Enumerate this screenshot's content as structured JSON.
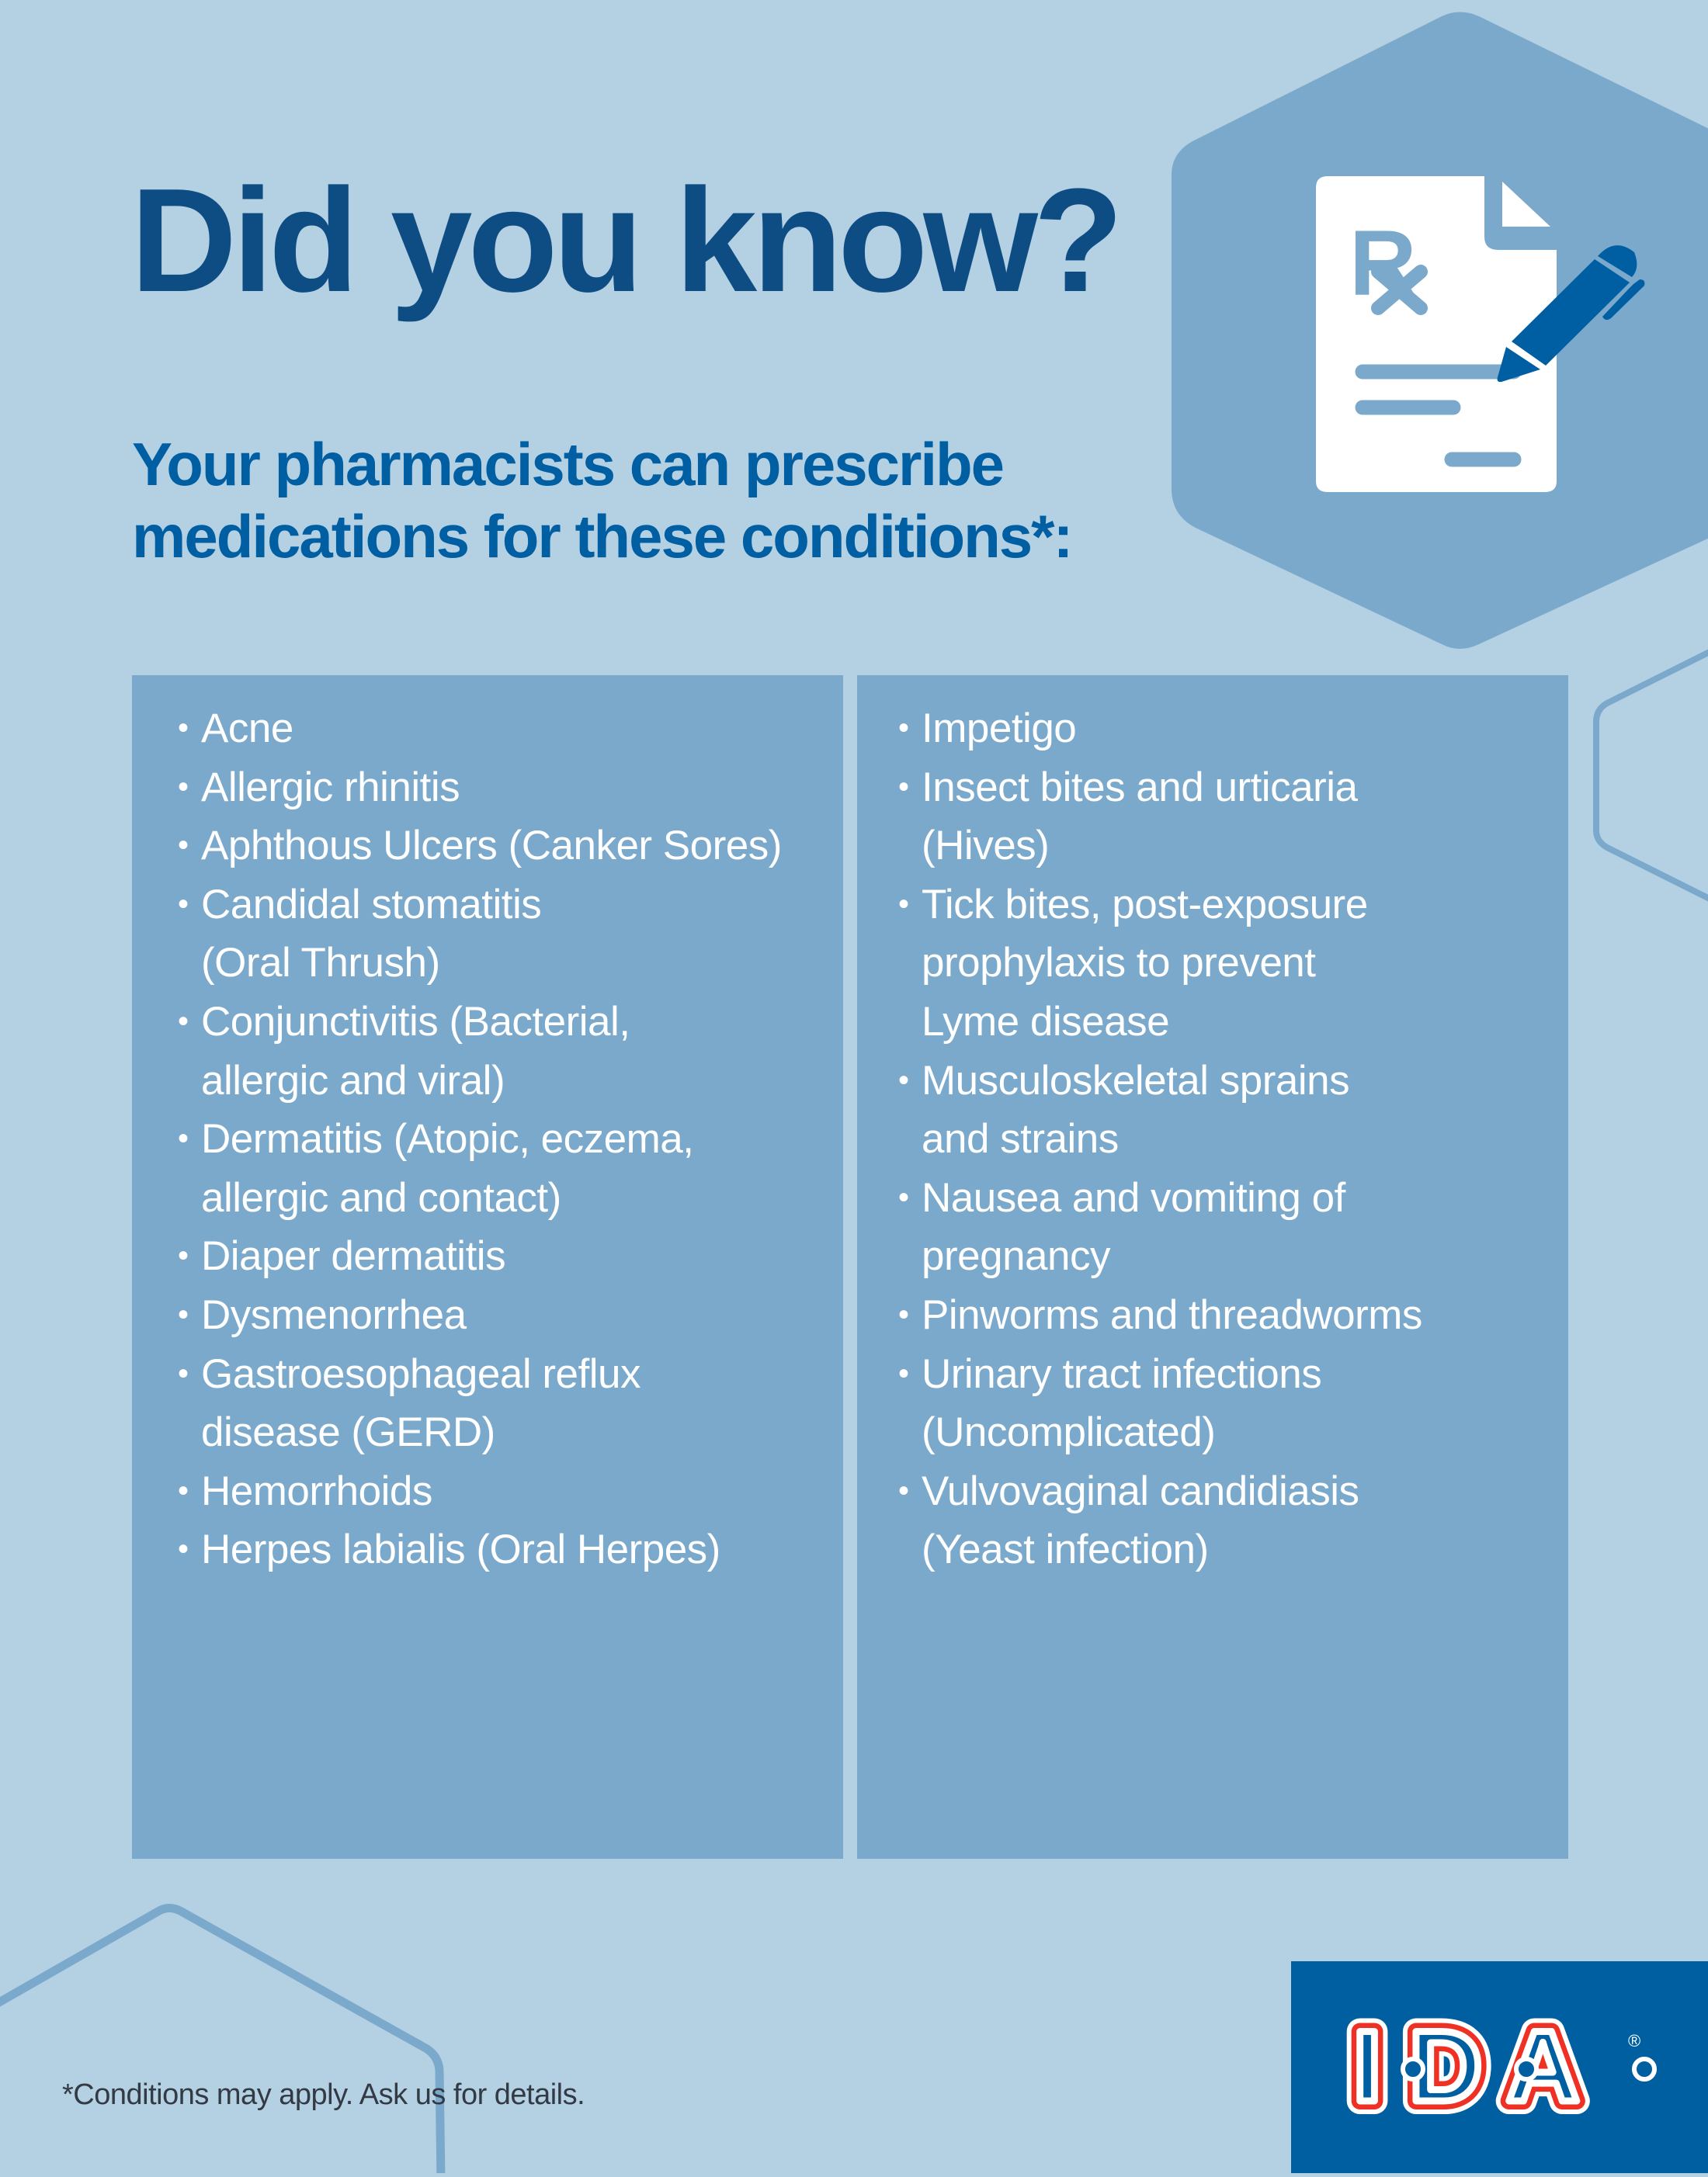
{
  "header": {
    "title": "Did you know?",
    "subtitle_line1": "Your pharmacists can prescribe",
    "subtitle_line2": "medications for these conditions*:"
  },
  "icon": "prescription-document-with-pen-icon",
  "conditions": {
    "left": [
      {
        "lines": [
          "Acne"
        ]
      },
      {
        "lines": [
          "Allergic rhinitis"
        ]
      },
      {
        "lines": [
          "Aphthous Ulcers (Canker Sores)"
        ]
      },
      {
        "lines": [
          "Candidal stomatitis",
          "(Oral Thrush)"
        ]
      },
      {
        "lines": [
          "Conjunctivitis (Bacterial,",
          "allergic and viral)"
        ]
      },
      {
        "lines": [
          "Dermatitis (Atopic, eczema,",
          "allergic and contact)"
        ]
      },
      {
        "lines": [
          "Diaper dermatitis"
        ]
      },
      {
        "lines": [
          "Dysmenorrhea"
        ]
      },
      {
        "lines": [
          "Gastroesophageal reflux",
          "disease (GERD)"
        ]
      },
      {
        "lines": [
          "Hemorrhoids"
        ]
      },
      {
        "lines": [
          "Herpes labialis (Oral Herpes)"
        ]
      }
    ],
    "right": [
      {
        "lines": [
          "Impetigo"
        ]
      },
      {
        "lines": [
          "Insect bites and urticaria",
          "(Hives)"
        ]
      },
      {
        "lines": [
          "Tick bites, post-exposure",
          "prophylaxis to prevent",
          "Lyme disease"
        ]
      },
      {
        "lines": [
          "Musculoskeletal sprains",
          "and strains"
        ]
      },
      {
        "lines": [
          "Nausea and vomiting of",
          "pregnancy"
        ]
      },
      {
        "lines": [
          "Pinworms and threadworms"
        ]
      },
      {
        "lines": [
          "Urinary tract infections",
          "(Uncomplicated)"
        ]
      },
      {
        "lines": [
          "Vulvovaginal candidiasis",
          "(Yeast infection)"
        ]
      }
    ]
  },
  "footnote": "*Conditions may apply. Ask us for details.",
  "logo": {
    "text": "I·D·A",
    "registered": "®"
  },
  "colors": {
    "background": "#b4d0e3",
    "panel": "#7ba9cc",
    "title": "#0e4c84",
    "subtitle": "#005ea2",
    "logo_box": "#005fa0",
    "logo_red": "#ee3124"
  }
}
